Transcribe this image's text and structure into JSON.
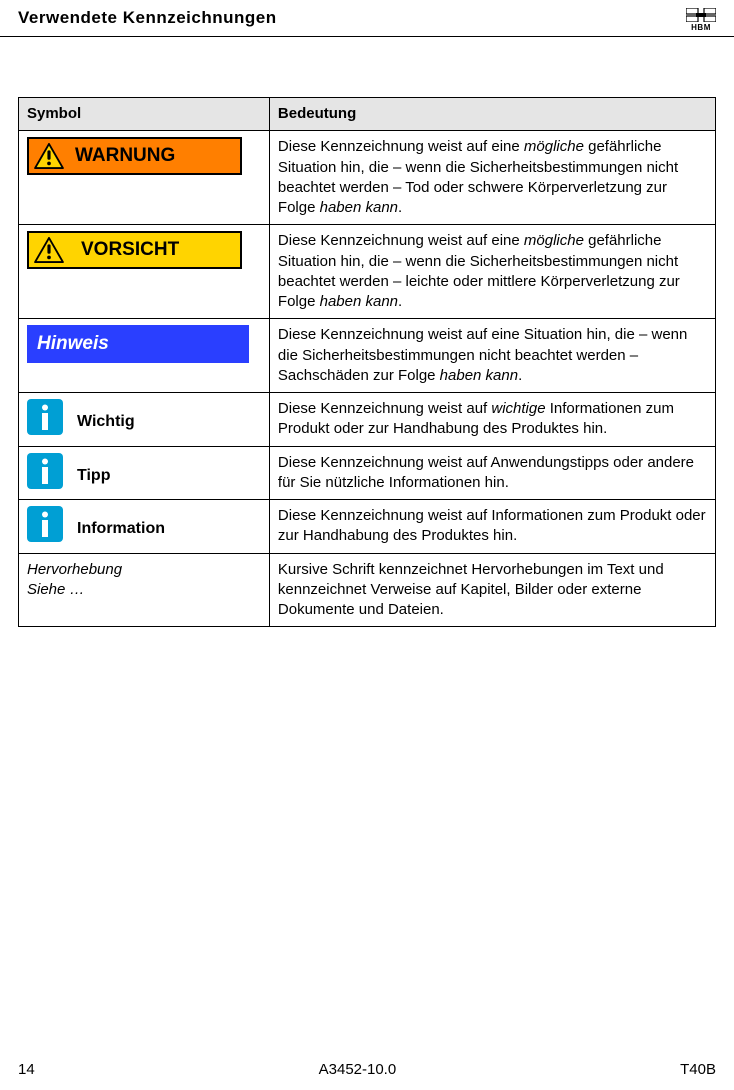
{
  "header": {
    "title": "Verwendete Kennzeichnungen",
    "logo_text": "HBM"
  },
  "table": {
    "columns": {
      "symbol": "Symbol",
      "meaning": "Bedeutung"
    },
    "header_bg": "#e5e5e5",
    "border_color": "#000000",
    "rows": [
      {
        "symbol": {
          "type": "warn_badge",
          "label": "WARNUNG",
          "bg": "#ff7f00",
          "fg": "#000000",
          "border": "#000000"
        },
        "description_html": "Diese Kennzeichnung weist auf eine <em>mögliche</em> gefährliche Situation hin, die – wenn die Sicherheits­bestimmungen nicht beachtet werden – Tod oder schwere Körperverletzung zur Folge <em>haben kann</em>."
      },
      {
        "symbol": {
          "type": "caution_badge",
          "label": "VORSICHT",
          "bg": "#ffd400",
          "fg": "#000000",
          "border": "#000000"
        },
        "description_html": "Diese Kennzeichnung weist auf eine <em>mögliche</em> gefährliche Situation hin, die – wenn die Sicherheits­bestimmungen nicht beachtet werden – leichte oder mittlere Körperverletzung zur Folge <em>haben kann</em>."
      },
      {
        "symbol": {
          "type": "notice",
          "label": "Hinweis",
          "bg": "#2a3fff",
          "fg": "#ffffff"
        },
        "description_html": "Diese Kennzeichnung weist auf eine Situation hin, die – wenn die Sicherheitsbestimmungen nicht beachtet werden – Sachschäden zur Folge <em>haben kann</em>."
      },
      {
        "symbol": {
          "type": "info_icon",
          "label": "Wichtig",
          "icon_bg": "#009fd4",
          "icon_fg": "#ffffff"
        },
        "description_html": "Diese Kennzeichnung weist auf <em>wichtige</em> Informa­tionen zum Produkt oder zur Handhabung des Pro­duktes hin."
      },
      {
        "symbol": {
          "type": "info_icon",
          "label": "Tipp",
          "icon_bg": "#009fd4",
          "icon_fg": "#ffffff"
        },
        "description_html": "Diese Kennzeichnung weist auf Anwendungstipps oder andere für Sie nützliche Informationen hin."
      },
      {
        "symbol": {
          "type": "info_icon",
          "label": "Information",
          "icon_bg": "#009fd4",
          "icon_fg": "#ffffff"
        },
        "description_html": "Diese Kennzeichnung weist auf Informationen zum Produkt oder zur Handhabung des Produktes hin."
      },
      {
        "symbol": {
          "type": "italic_text",
          "line1": "Hervorhebung",
          "line2": "Siehe …"
        },
        "description_html": "Kursive Schrift kennzeichnet Hervorhebungen im Text und kennzeichnet Verweise auf Kapitel, Bilder oder externe Dokumente und Dateien."
      }
    ]
  },
  "footer": {
    "page_number": "14",
    "doc_id": "A3452-10.0",
    "product": "T40B"
  },
  "fonts": {
    "base_family": "Arial",
    "base_size_pt": 11,
    "title_size_pt": 13
  }
}
